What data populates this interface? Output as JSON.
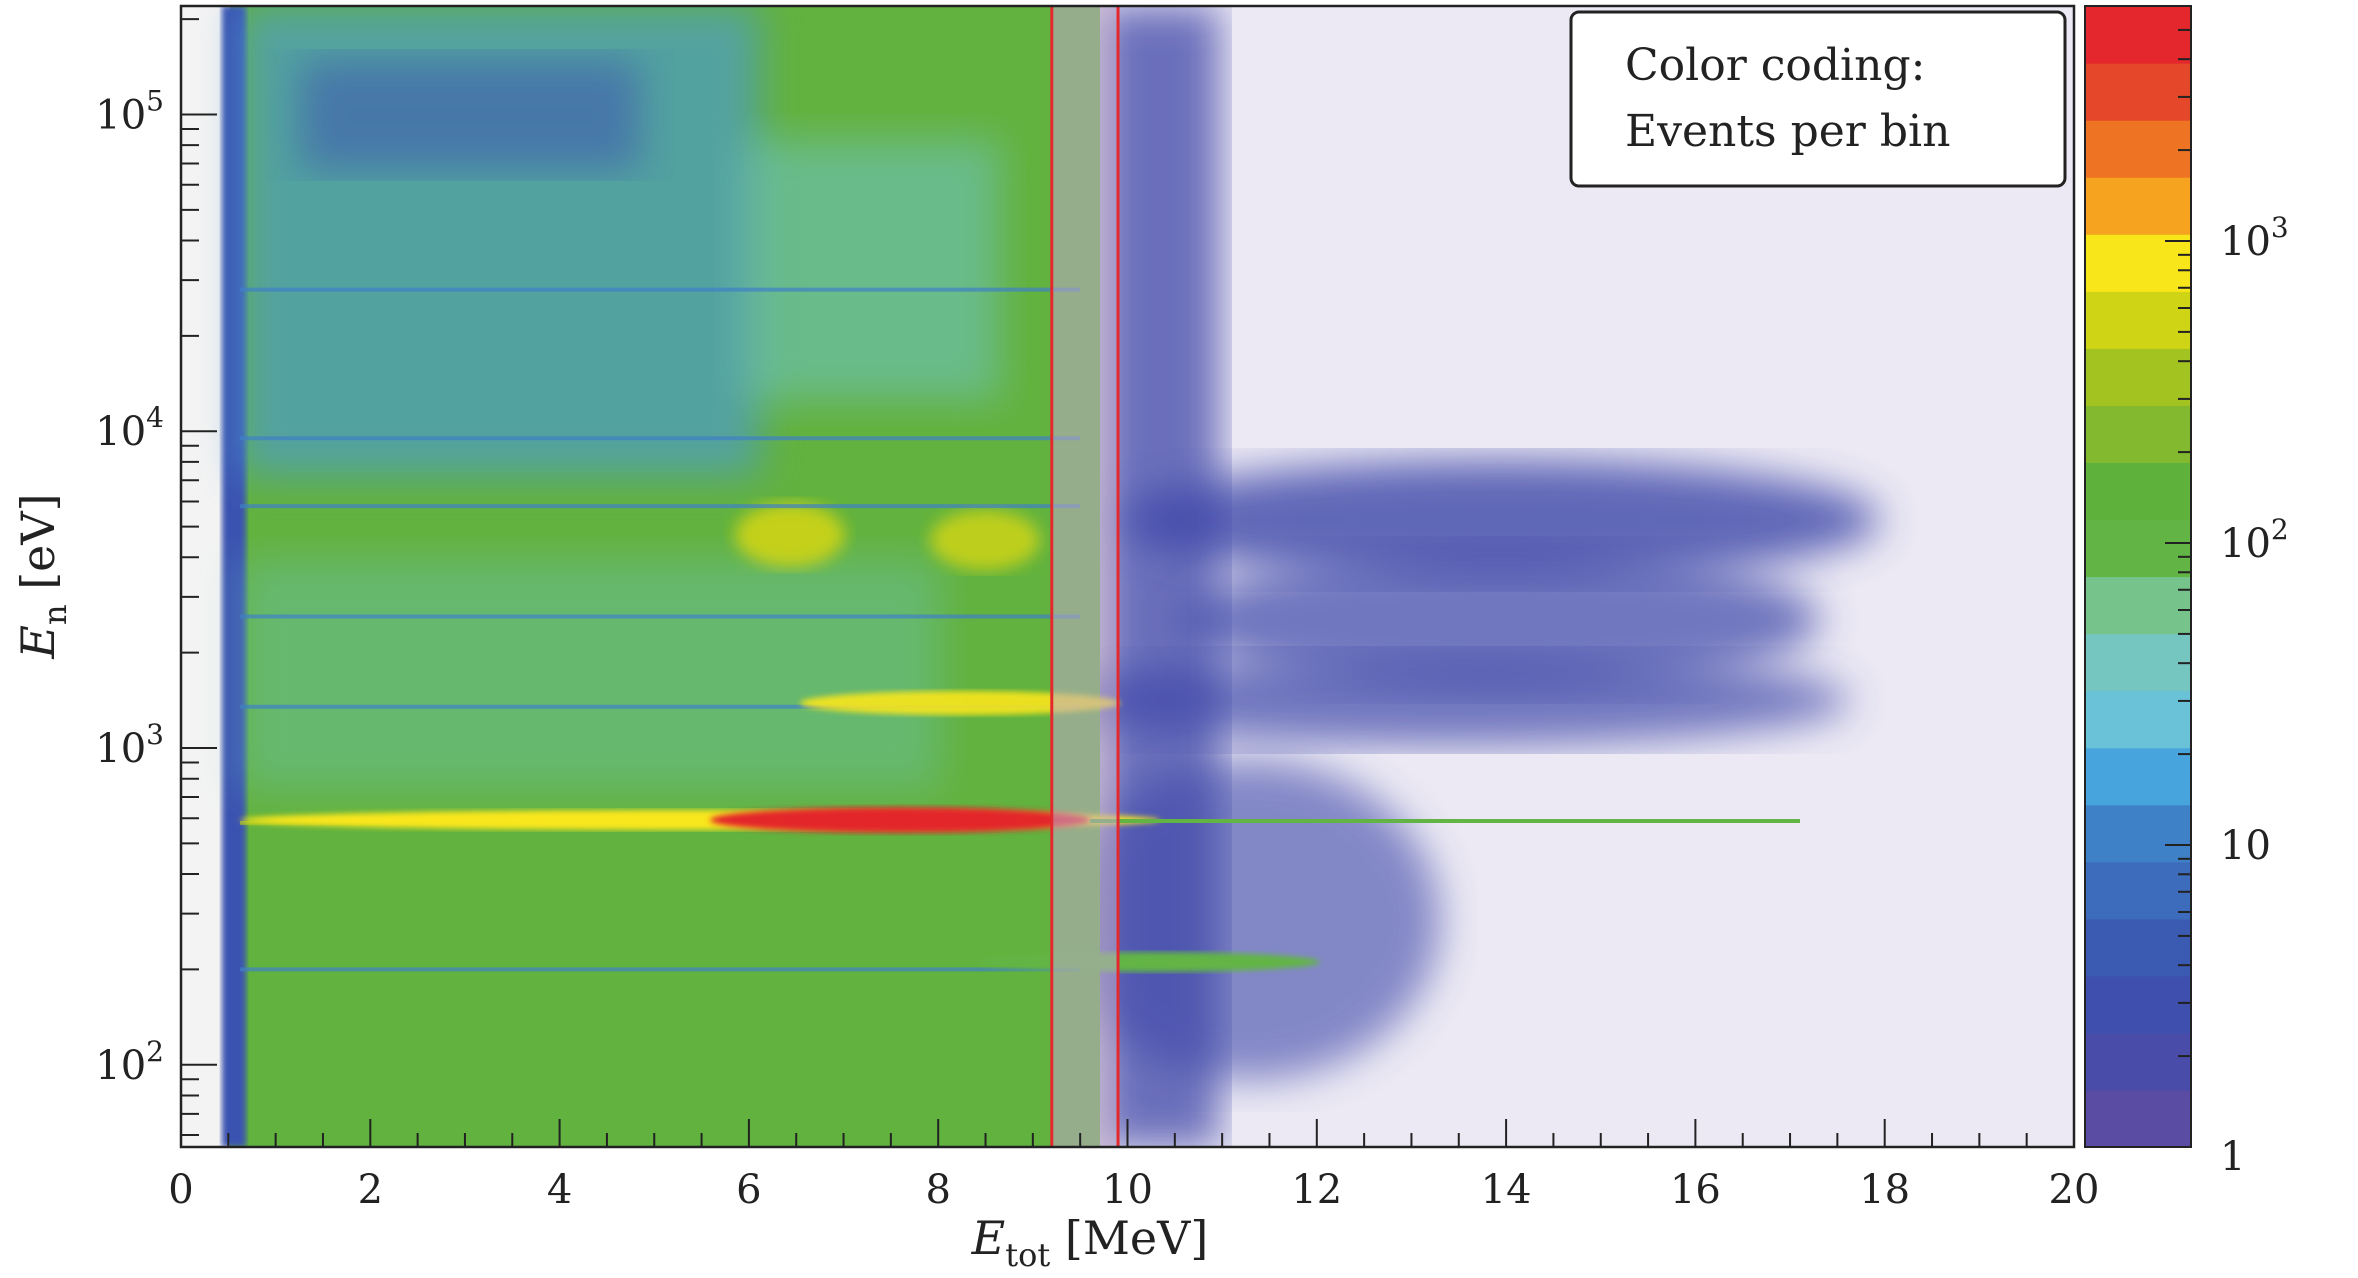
{
  "chart_data": {
    "type": "heatmap",
    "title": "",
    "xlabel": {
      "main": "E",
      "sub": "tot",
      "unit": " [MeV]"
    },
    "ylabel": {
      "main": "E",
      "sub": "n",
      "unit": " [eV]"
    },
    "x_scale": "linear",
    "y_scale": "log",
    "xlim": [
      0,
      20
    ],
    "ylim": [
      55,
      220000
    ],
    "x_ticks": [
      0,
      2,
      4,
      6,
      8,
      10,
      12,
      14,
      16,
      18,
      20
    ],
    "x_tick_labels": [
      "0",
      "2",
      "4",
      "6",
      "8",
      "10",
      "12",
      "14",
      "16",
      "18",
      "20"
    ],
    "y_ticks": [
      100,
      1000,
      10000,
      100000
    ],
    "y_tick_labels": [
      {
        "base": "10",
        "exp": "2"
      },
      {
        "base": "10",
        "exp": "3"
      },
      {
        "base": "10",
        "exp": "4"
      },
      {
        "base": "10",
        "exp": "5"
      }
    ],
    "colorbar": {
      "scale": "log",
      "zlim": [
        1,
        6000
      ],
      "colors": [
        "#5a4ba3",
        "#4a4ca9",
        "#3e4fae",
        "#3b5bb3",
        "#3c6cbb",
        "#3f81c6",
        "#47a4dc",
        "#6ac2d8",
        "#75c6c0",
        "#77c38c",
        "#62b545",
        "#5eb13a",
        "#83b92f",
        "#a3c321",
        "#cfd414",
        "#f9e61a",
        "#f6a41f",
        "#ee7423",
        "#e5472a",
        "#e3272c"
      ],
      "tick_labels": [
        {
          "value": 1,
          "base": "1",
          "exp": ""
        },
        {
          "value": 10,
          "base": "10",
          "exp": ""
        },
        {
          "value": 100,
          "base": "10",
          "exp": "2"
        },
        {
          "value": 1000,
          "base": "10",
          "exp": "3"
        }
      ]
    },
    "annotation_box": {
      "lines": [
        "Color coding:",
        "Events per bin"
      ]
    },
    "selection_window": {
      "x_range": [
        9.2,
        9.9
      ],
      "color": "#e4282c"
    },
    "resonance_lines_eV": [
      580,
      200,
      1350,
      2600,
      5800,
      9500,
      28000
    ]
  }
}
